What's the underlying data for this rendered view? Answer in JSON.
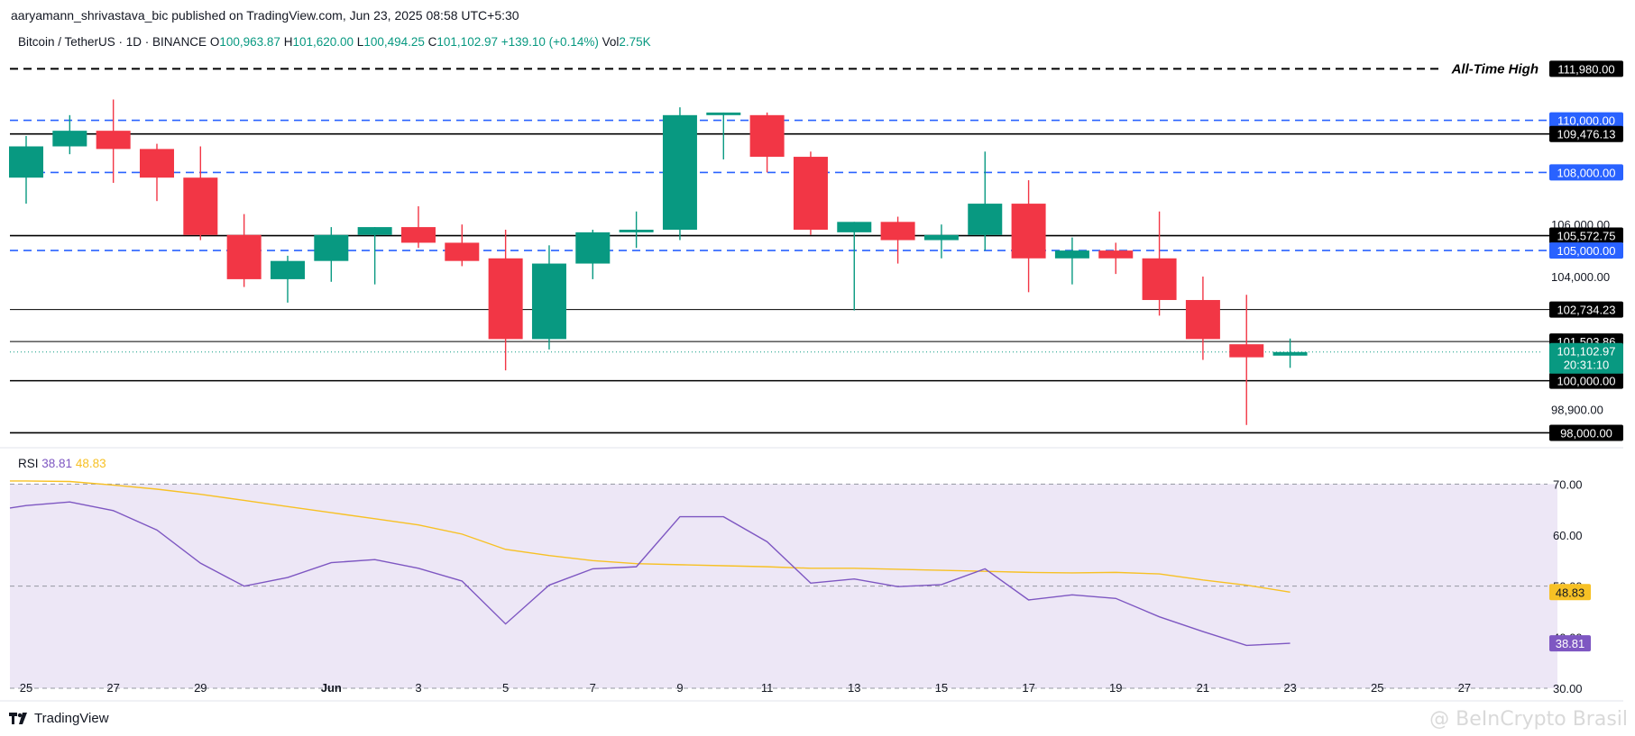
{
  "publisher_line": "aaryamann_shrivastava_bic published on TradingView.com, Jun 23, 2025 08:58 UTC+5:30",
  "symbol": "Bitcoin / TetherUS · 1D · BINANCE",
  "ohlc": {
    "o_label": "O",
    "o": "100,963.87",
    "h_label": "H",
    "h": "101,620.00",
    "l_label": "L",
    "l": "100,494.25",
    "c_label": "C",
    "c": "101,102.97",
    "change": "+139.10 (+0.14%)",
    "vol_label": "Vol",
    "vol": "2.75K"
  },
  "rsi_legend": {
    "label": "RSI",
    "rsi": "38.81",
    "ma": "48.83"
  },
  "colors": {
    "up": "#089981",
    "down": "#f23645",
    "blue_level": "#2962ff",
    "rsi_line": "#7e57c2",
    "rsi_ma": "#f7c125",
    "rsi_band": "#ede7f6"
  },
  "brand": "TradingView",
  "watermark": "@ BeInCrypto Brasil",
  "chart_data": [
    {
      "type": "candlestick",
      "title": "Bitcoin / TetherUS · 1D · BINANCE",
      "ylim": [
        97600,
        112200
      ],
      "x_labels": [
        {
          "i": 0,
          "t": "25"
        },
        {
          "i": 2,
          "t": "27"
        },
        {
          "i": 4,
          "t": "29"
        },
        {
          "i": 7,
          "t": "Jun"
        },
        {
          "i": 9,
          "t": "3"
        },
        {
          "i": 11,
          "t": "5"
        },
        {
          "i": 13,
          "t": "7"
        },
        {
          "i": 15,
          "t": "9"
        },
        {
          "i": 17,
          "t": "11"
        },
        {
          "i": 19,
          "t": "13"
        },
        {
          "i": 21,
          "t": "15"
        },
        {
          "i": 23,
          "t": "17"
        },
        {
          "i": 25,
          "t": "19"
        },
        {
          "i": 27,
          "t": "21"
        },
        {
          "i": 29,
          "t": "23"
        },
        {
          "i": 31,
          "t": "25"
        },
        {
          "i": 33,
          "t": "27"
        }
      ],
      "candles": [
        {
          "date": "May 25",
          "o": 107800,
          "h": 109400,
          "l": 106800,
          "c": 109000
        },
        {
          "date": "May 26",
          "o": 109000,
          "h": 110200,
          "l": 108700,
          "c": 109600
        },
        {
          "date": "May 27",
          "o": 109600,
          "h": 110800,
          "l": 107600,
          "c": 108900
        },
        {
          "date": "May 28",
          "o": 108900,
          "h": 109100,
          "l": 106900,
          "c": 107800
        },
        {
          "date": "May 29",
          "o": 107800,
          "h": 109000,
          "l": 105400,
          "c": 105600
        },
        {
          "date": "May 30",
          "o": 105600,
          "h": 106400,
          "l": 103600,
          "c": 103900
        },
        {
          "date": "May 31",
          "o": 103900,
          "h": 104800,
          "l": 103000,
          "c": 104600
        },
        {
          "date": "Jun 1",
          "o": 104600,
          "h": 105900,
          "l": 103800,
          "c": 105600
        },
        {
          "date": "Jun 2",
          "o": 105600,
          "h": 105900,
          "l": 103700,
          "c": 105900
        },
        {
          "date": "Jun 3",
          "o": 105900,
          "h": 106700,
          "l": 105100,
          "c": 105300
        },
        {
          "date": "Jun 4",
          "o": 105300,
          "h": 106000,
          "l": 104400,
          "c": 104600
        },
        {
          "date": "Jun 5",
          "o": 104700,
          "h": 105800,
          "l": 100400,
          "c": 101600
        },
        {
          "date": "Jun 6",
          "o": 101600,
          "h": 105200,
          "l": 101200,
          "c": 104500
        },
        {
          "date": "Jun 7",
          "o": 104500,
          "h": 105800,
          "l": 103900,
          "c": 105700
        },
        {
          "date": "Jun 8",
          "o": 105700,
          "h": 106500,
          "l": 105100,
          "c": 105800
        },
        {
          "date": "Jun 9",
          "o": 105800,
          "h": 110500,
          "l": 105400,
          "c": 110200
        },
        {
          "date": "Jun 10",
          "o": 110200,
          "h": 110300,
          "l": 108500,
          "c": 110300
        },
        {
          "date": "Jun 11",
          "o": 110200,
          "h": 110300,
          "l": 108000,
          "c": 108600
        },
        {
          "date": "Jun 12",
          "o": 108600,
          "h": 108800,
          "l": 105600,
          "c": 105800
        },
        {
          "date": "Jun 13",
          "o": 105700,
          "h": 106100,
          "l": 102700,
          "c": 106100
        },
        {
          "date": "Jun 14",
          "o": 106100,
          "h": 106300,
          "l": 104500,
          "c": 105400
        },
        {
          "date": "Jun 15",
          "o": 105400,
          "h": 106000,
          "l": 104700,
          "c": 105600
        },
        {
          "date": "Jun 16",
          "o": 105600,
          "h": 108800,
          "l": 105000,
          "c": 106800
        },
        {
          "date": "Jun 17",
          "o": 106800,
          "h": 107700,
          "l": 103400,
          "c": 104700
        },
        {
          "date": "Jun 18",
          "o": 104700,
          "h": 105500,
          "l": 103700,
          "c": 105000
        },
        {
          "date": "Jun 19",
          "o": 105000,
          "h": 105300,
          "l": 104100,
          "c": 104700
        },
        {
          "date": "Jun 20",
          "o": 104700,
          "h": 106500,
          "l": 102500,
          "c": 103100
        },
        {
          "date": "Jun 21",
          "o": 103100,
          "h": 104000,
          "l": 100800,
          "c": 101600
        },
        {
          "date": "Jun 22",
          "o": 101400,
          "h": 103300,
          "l": 98300,
          "c": 100900
        },
        {
          "date": "Jun 23",
          "o": 100963.87,
          "h": 101620,
          "l": 100494.25,
          "c": 101102.97
        }
      ],
      "levels": [
        {
          "value": 111980,
          "label": "111,980.00",
          "style": "dashed-black",
          "note": "All-Time High"
        },
        {
          "value": 110000,
          "label": "110,000.00",
          "style": "dashed-blue"
        },
        {
          "value": 109476.13,
          "label": "109,476.13",
          "style": "solid-black"
        },
        {
          "value": 108000,
          "label": "108,000.00",
          "style": "dashed-blue"
        },
        {
          "value": 105572.75,
          "label": "105,572.75",
          "style": "solid-black"
        },
        {
          "value": 105000,
          "label": "105,000.00",
          "style": "dashed-blue"
        },
        {
          "value": 102734.23,
          "label": "102,734.23",
          "style": "solid-thin"
        },
        {
          "value": 101503.86,
          "label": "101,503.86",
          "style": "solid-thin"
        },
        {
          "value": 100000,
          "label": "100,000.00",
          "style": "solid-black"
        },
        {
          "value": 98000,
          "label": "98,000.00",
          "style": "solid-black"
        }
      ],
      "y_ticks": [
        {
          "value": 106000,
          "label": "106,000.00"
        },
        {
          "value": 104000,
          "label": "104,000.00"
        },
        {
          "value": 98900,
          "label": "98,900.00"
        }
      ],
      "last_price": {
        "value": 101102.97,
        "label": "101,102.97",
        "countdown": "20:31:10"
      }
    },
    {
      "type": "line",
      "title": "RSI",
      "ylim": [
        27,
        72
      ],
      "y_ticks": [
        {
          "value": 70,
          "label": "70.00"
        },
        {
          "value": 60,
          "label": "60.00"
        },
        {
          "value": 50,
          "label": "50.00"
        },
        {
          "value": 40,
          "label": "40.00"
        },
        {
          "value": 30,
          "label": "30.00"
        }
      ],
      "band": [
        30,
        70
      ],
      "series": [
        {
          "name": "RSI",
          "values": [
            65.8,
            66.5,
            64.8,
            61,
            54.5,
            50,
            51.7,
            54.6,
            55.2,
            53.5,
            51,
            42.6,
            50.2,
            53.4,
            53.8,
            63.6,
            63.6,
            58.7,
            50.6,
            51.4,
            49.9,
            50.3,
            53.4,
            47.3,
            48.3,
            47.6,
            44,
            41.1,
            38.4,
            38.81
          ]
        },
        {
          "name": "RSI-based MA",
          "values": [
            70.6,
            70.5,
            69.8,
            69,
            68,
            66.8,
            65.6,
            64.4,
            63.2,
            62,
            60.2,
            57.2,
            56,
            55,
            54.4,
            54.2,
            54,
            53.8,
            53.5,
            53.5,
            53.3,
            53.1,
            52.9,
            52.7,
            52.6,
            52.7,
            52.4,
            51.2,
            50.2,
            48.83
          ]
        }
      ],
      "last_values": [
        {
          "value": 48.83,
          "label": "48.83"
        },
        {
          "value": 38.81,
          "label": "38.81"
        }
      ]
    }
  ]
}
